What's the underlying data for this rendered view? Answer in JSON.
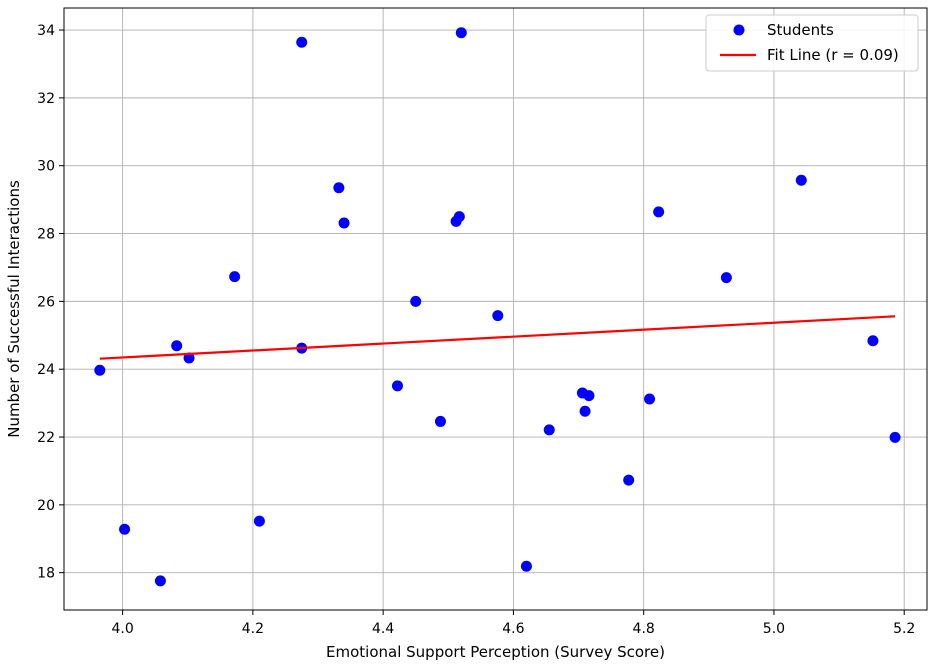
{
  "chart_data": {
    "type": "scatter",
    "xlabel": "Emotional Support Perception (Survey Score)",
    "ylabel": "Number of Successful Interactions",
    "xlim": [
      3.91,
      5.235
    ],
    "ylim": [
      16.9,
      34.65
    ],
    "xticks": [
      4.0,
      4.2,
      4.4,
      4.6,
      4.8,
      5.0,
      5.2
    ],
    "xtick_labels": [
      "4.0",
      "4.2",
      "4.4",
      "4.6",
      "4.8",
      "5.0",
      "5.2"
    ],
    "yticks": [
      18,
      20,
      22,
      24,
      26,
      28,
      30,
      32,
      34
    ],
    "ytick_labels": [
      "18",
      "20",
      "22",
      "24",
      "26",
      "28",
      "30",
      "32",
      "34"
    ],
    "grid": true,
    "legend_position": "top-right",
    "series": [
      {
        "name": "Students",
        "kind": "scatter",
        "color": "#0000ff",
        "points": [
          {
            "x": 3.965,
            "y": 23.97
          },
          {
            "x": 4.003,
            "y": 19.28
          },
          {
            "x": 4.058,
            "y": 17.76
          },
          {
            "x": 4.083,
            "y": 24.69
          },
          {
            "x": 4.102,
            "y": 24.33
          },
          {
            "x": 4.172,
            "y": 26.73
          },
          {
            "x": 4.21,
            "y": 19.52
          },
          {
            "x": 4.275,
            "y": 33.64
          },
          {
            "x": 4.275,
            "y": 24.62
          },
          {
            "x": 4.332,
            "y": 29.35
          },
          {
            "x": 4.34,
            "y": 28.31
          },
          {
            "x": 4.422,
            "y": 23.51
          },
          {
            "x": 4.45,
            "y": 26.0
          },
          {
            "x": 4.488,
            "y": 22.46
          },
          {
            "x": 4.512,
            "y": 28.36
          },
          {
            "x": 4.517,
            "y": 28.5
          },
          {
            "x": 4.52,
            "y": 33.92
          },
          {
            "x": 4.576,
            "y": 25.58
          },
          {
            "x": 4.62,
            "y": 18.19
          },
          {
            "x": 4.655,
            "y": 22.21
          },
          {
            "x": 4.706,
            "y": 23.3
          },
          {
            "x": 4.71,
            "y": 22.76
          },
          {
            "x": 4.716,
            "y": 23.22
          },
          {
            "x": 4.777,
            "y": 20.73
          },
          {
            "x": 4.809,
            "y": 23.12
          },
          {
            "x": 4.823,
            "y": 28.64
          },
          {
            "x": 4.927,
            "y": 26.7
          },
          {
            "x": 5.042,
            "y": 29.57
          },
          {
            "x": 5.152,
            "y": 24.84
          },
          {
            "x": 5.186,
            "y": 21.99
          }
        ]
      },
      {
        "name": "Fit Line (r = 0.09)",
        "kind": "line",
        "color": "#ff0000",
        "points": [
          {
            "x": 3.965,
            "y": 24.31
          },
          {
            "x": 5.186,
            "y": 25.56
          }
        ]
      }
    ]
  }
}
